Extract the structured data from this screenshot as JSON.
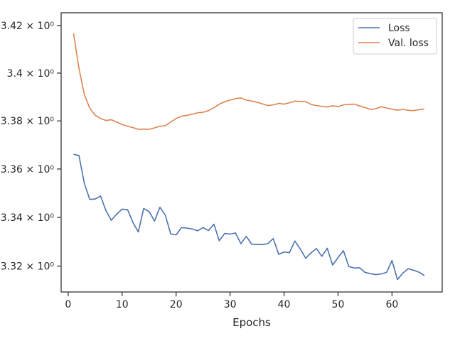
{
  "chart_data": {
    "type": "line",
    "title": "",
    "xlabel": "Epochs",
    "ylabel": "",
    "yscale": "log",
    "xlim": [
      -1.3,
      69.3
    ],
    "ylim": [
      3.3094,
      3.4254
    ],
    "grid": false,
    "legend_position": "top-right",
    "x_ticks": [
      0,
      10,
      20,
      30,
      40,
      50,
      60
    ],
    "x_tick_labels": [
      "0",
      "10",
      "20",
      "30",
      "40",
      "50",
      "60"
    ],
    "y_ticks": [
      3.32,
      3.34,
      3.36,
      3.38,
      3.4,
      3.42
    ],
    "y_tick_labels": [
      "3.32 × 10⁰",
      "3.34 × 10⁰",
      "3.36 × 10⁰",
      "3.38 × 10⁰",
      "3.4 × 10⁰",
      "3.42 × 10⁰"
    ],
    "series": [
      {
        "name": "Loss",
        "color": "#4c72b0",
        "x": [
          1,
          2,
          3,
          4,
          5,
          6,
          7,
          8,
          9,
          10,
          11,
          12,
          13,
          14,
          15,
          16,
          17,
          18,
          19,
          20,
          21,
          22,
          23,
          24,
          25,
          26,
          27,
          28,
          29,
          30,
          31,
          32,
          33,
          34,
          35,
          36,
          37,
          38,
          39,
          40,
          41,
          42,
          43,
          44,
          45,
          46,
          47,
          48,
          49,
          50,
          51,
          52,
          53,
          54,
          55,
          56,
          57,
          58,
          59,
          60,
          61,
          62,
          63,
          64,
          65,
          66
        ],
        "values": [
          3.3661,
          3.3656,
          3.354,
          3.3474,
          3.3476,
          3.3488,
          3.3428,
          3.3388,
          3.3414,
          3.3434,
          3.3432,
          3.3379,
          3.334,
          3.3437,
          3.3424,
          3.3385,
          3.3442,
          3.3409,
          3.3332,
          3.3328,
          3.3358,
          3.3356,
          3.3352,
          3.3345,
          3.3358,
          3.3346,
          3.3372,
          3.3304,
          3.3334,
          3.3331,
          3.3336,
          3.3292,
          3.3322,
          3.329,
          3.3289,
          3.3288,
          3.3292,
          3.3313,
          3.3248,
          3.3258,
          3.3255,
          3.3303,
          3.327,
          3.3232,
          3.3254,
          3.3272,
          3.324,
          3.3273,
          3.3204,
          3.3235,
          3.3263,
          3.3198,
          3.3192,
          3.3193,
          3.3174,
          3.3169,
          3.3165,
          3.3168,
          3.3174,
          3.3223,
          3.3145,
          3.3171,
          3.3189,
          3.3183,
          3.3175,
          3.3161
        ]
      },
      {
        "name": "Val. loss",
        "color": "#dd8452",
        "x": [
          1,
          2,
          3,
          4,
          5,
          6,
          7,
          8,
          9,
          10,
          11,
          12,
          13,
          14,
          15,
          16,
          17,
          18,
          19,
          20,
          21,
          22,
          23,
          24,
          25,
          26,
          27,
          28,
          29,
          30,
          31,
          32,
          33,
          34,
          35,
          36,
          37,
          38,
          39,
          40,
          41,
          42,
          43,
          44,
          45,
          46,
          47,
          48,
          49,
          50,
          51,
          52,
          53,
          54,
          55,
          56,
          57,
          58,
          59,
          60,
          61,
          62,
          63,
          64,
          65,
          66
        ],
        "values": [
          3.4167,
          3.402,
          3.391,
          3.3853,
          3.3824,
          3.381,
          3.3802,
          3.3805,
          3.3795,
          3.3785,
          3.3778,
          3.3772,
          3.3765,
          3.3766,
          3.3765,
          3.3771,
          3.3778,
          3.378,
          3.3795,
          3.381,
          3.382,
          3.3823,
          3.3828,
          3.3834,
          3.3836,
          3.3843,
          3.3855,
          3.387,
          3.388,
          3.3887,
          3.3893,
          3.3896,
          3.3887,
          3.3883,
          3.3878,
          3.3871,
          3.3864,
          3.3867,
          3.3873,
          3.387,
          3.3876,
          3.3883,
          3.3881,
          3.3881,
          3.3869,
          3.3864,
          3.3861,
          3.3858,
          3.3863,
          3.386,
          3.3867,
          3.3869,
          3.387,
          3.3863,
          3.3856,
          3.3848,
          3.3851,
          3.3859,
          3.3854,
          3.3849,
          3.3845,
          3.3848,
          3.3844,
          3.3843,
          3.3847,
          3.385
        ]
      }
    ]
  }
}
